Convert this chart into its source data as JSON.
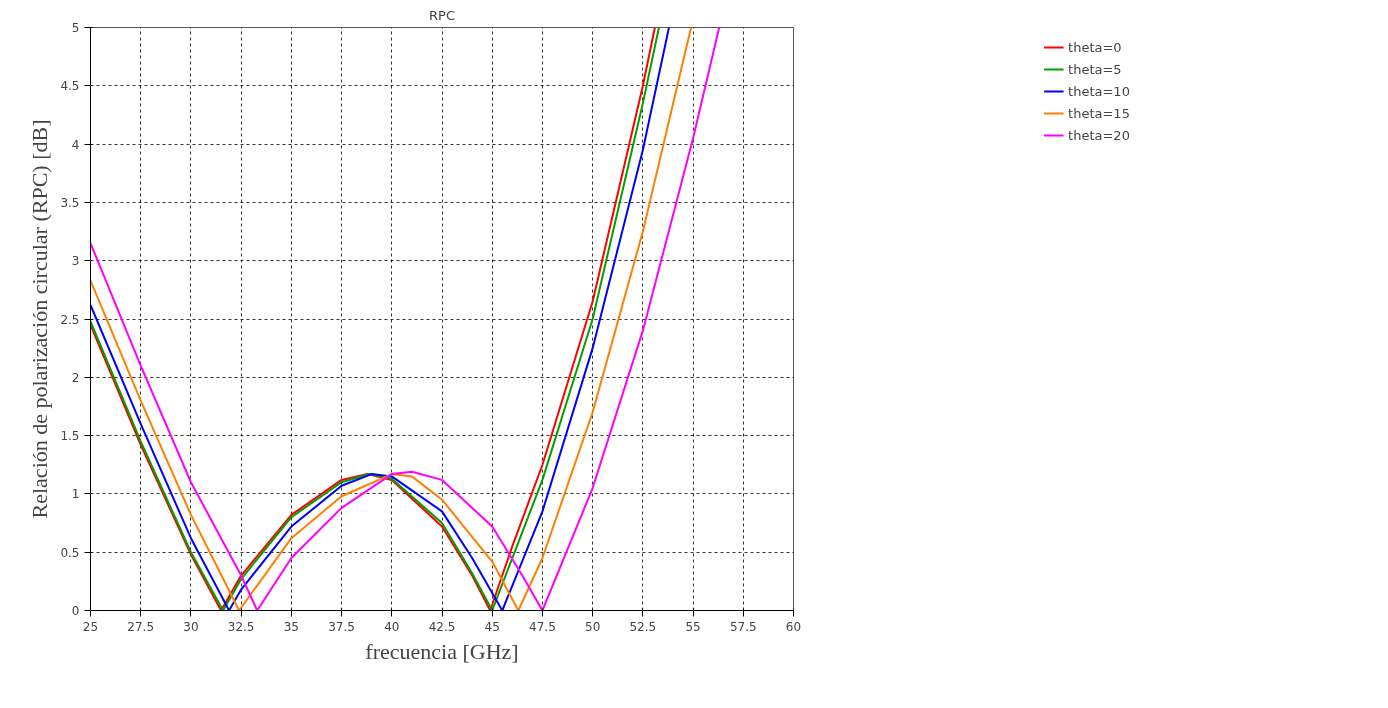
{
  "chart_data": {
    "type": "line",
    "title": "RPC",
    "xlabel": "frecuencia [GHz]",
    "ylabel": "Relación de polarización circular (RPC) [dB]",
    "xlim": [
      25,
      60
    ],
    "ylim": [
      0,
      5
    ],
    "xticks": [
      25,
      27.5,
      30,
      32.5,
      35,
      37.5,
      40,
      42.5,
      45,
      47.5,
      50,
      52.5,
      55,
      57.5,
      60
    ],
    "yticks": [
      0,
      0.5,
      1,
      1.5,
      2,
      2.5,
      3,
      3.5,
      4,
      4.5,
      5
    ],
    "grid": true,
    "legend": "top right",
    "line_style": "solid",
    "marker": "none",
    "series": [
      {
        "name": "theta=0",
        "color": "#ff0000",
        "x": [
          25,
          27.5,
          30,
          31.5,
          32.5,
          35,
          37.5,
          38.8,
          40,
          42.5,
          44,
          44.9,
          46,
          47.5,
          50,
          52.5,
          53.1
        ],
        "values": [
          2.45,
          1.42,
          0.48,
          0,
          0.3,
          0.82,
          1.12,
          1.17,
          1.12,
          0.72,
          0.3,
          0,
          0.55,
          1.25,
          2.65,
          4.5,
          5
        ]
      },
      {
        "name": "theta=5",
        "color": "#00a000",
        "x": [
          25,
          27.5,
          30,
          31.6,
          32.5,
          35,
          37.5,
          38.9,
          40,
          42.5,
          44,
          45,
          46,
          47.5,
          50,
          52.5,
          53.3
        ],
        "values": [
          2.48,
          1.45,
          0.5,
          0,
          0.27,
          0.8,
          1.1,
          1.17,
          1.13,
          0.75,
          0.32,
          0,
          0.45,
          1.12,
          2.5,
          4.35,
          5
        ]
      },
      {
        "name": "theta=10",
        "color": "#0000ff",
        "x": [
          25,
          27.5,
          30,
          31.9,
          32.5,
          35,
          37.5,
          39,
          40,
          42.5,
          44,
          45.5,
          47.5,
          50,
          52.5,
          53.8
        ],
        "values": [
          2.62,
          1.6,
          0.62,
          0,
          0.18,
          0.72,
          1.07,
          1.17,
          1.15,
          0.85,
          0.45,
          0,
          0.85,
          2.25,
          3.95,
          5
        ]
      },
      {
        "name": "theta=15",
        "color": "#ff8000",
        "x": [
          25,
          27.5,
          30,
          32.4,
          35,
          37.5,
          40,
          41,
          42.5,
          45,
          46.3,
          47.5,
          50,
          52.5,
          54.9
        ],
        "values": [
          2.83,
          1.8,
          0.82,
          0,
          0.62,
          0.98,
          1.17,
          1.15,
          0.95,
          0.42,
          0,
          0.45,
          1.7,
          3.25,
          5
        ]
      },
      {
        "name": "theta=20",
        "color": "#ff00ff",
        "x": [
          25,
          27.5,
          30,
          32.5,
          33.3,
          35,
          37.5,
          40,
          41,
          42.5,
          45,
          46.5,
          47.5,
          50,
          52.5,
          55,
          56.3
        ],
        "values": [
          3.15,
          2.1,
          1.1,
          0.3,
          0,
          0.45,
          0.88,
          1.17,
          1.19,
          1.12,
          0.72,
          0.3,
          0,
          1.05,
          2.4,
          4.05,
          5
        ]
      }
    ]
  }
}
